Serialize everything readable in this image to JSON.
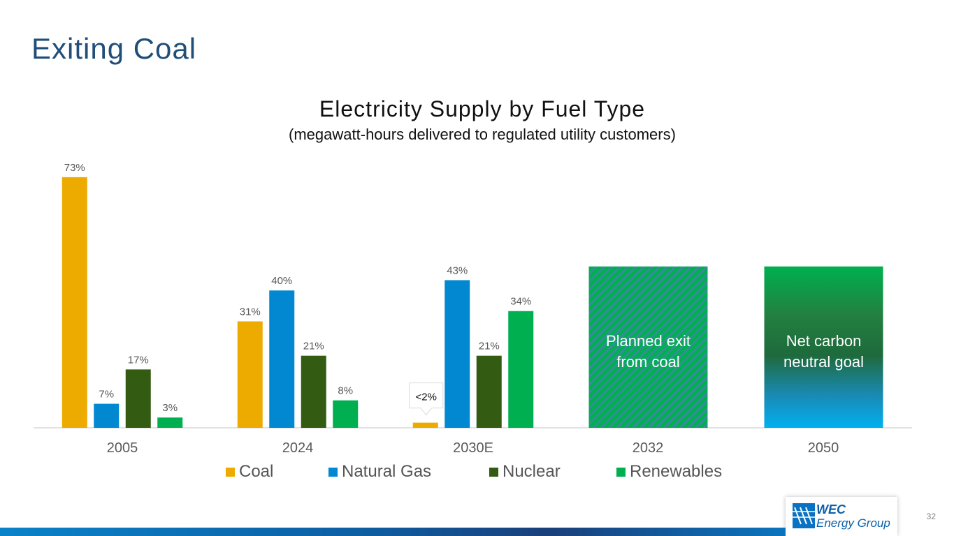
{
  "page": {
    "title": "Exiting Coal",
    "page_number": "32"
  },
  "logo": {
    "line1": "WEC",
    "line2": "Energy Group"
  },
  "colors": {
    "Coal": "#edab00",
    "Natural Gas": "#0288d1",
    "Nuclear": "#335c12",
    "Renewables": "#00b050",
    "title": "#1f4e79"
  },
  "chart_data": {
    "type": "bar",
    "title": "Electricity Supply by Fuel Type",
    "subtitle": "(megawatt-hours delivered to regulated utility customers)",
    "categories": [
      "2005",
      "2024",
      "2030E",
      "2032",
      "2050"
    ],
    "series": [
      {
        "name": "Coal",
        "values": [
          73,
          31,
          1.5,
          null,
          null
        ],
        "labels": [
          "73%",
          "31%",
          "<2%",
          "",
          ""
        ]
      },
      {
        "name": "Natural Gas",
        "values": [
          7,
          40,
          43,
          null,
          null
        ],
        "labels": [
          "7%",
          "40%",
          "43%",
          "",
          ""
        ]
      },
      {
        "name": "Nuclear",
        "values": [
          17,
          21,
          21,
          null,
          null
        ],
        "labels": [
          "17%",
          "21%",
          "21%",
          "",
          ""
        ]
      },
      {
        "name": "Renewables",
        "values": [
          3,
          8,
          34,
          null,
          null
        ],
        "labels": [
          "3%",
          "8%",
          "34%",
          "",
          ""
        ]
      }
    ],
    "milestones": [
      {
        "category": "2032",
        "label_line1": "Planned exit",
        "label_line2": "from coal",
        "value": 47
      },
      {
        "category": "2050",
        "label_line1": "Net carbon",
        "label_line2": "neutral goal",
        "value": 47
      }
    ],
    "ylim": [
      0,
      75
    ],
    "xlabel": "",
    "ylabel": "",
    "grid": false,
    "legend": "bottom"
  }
}
